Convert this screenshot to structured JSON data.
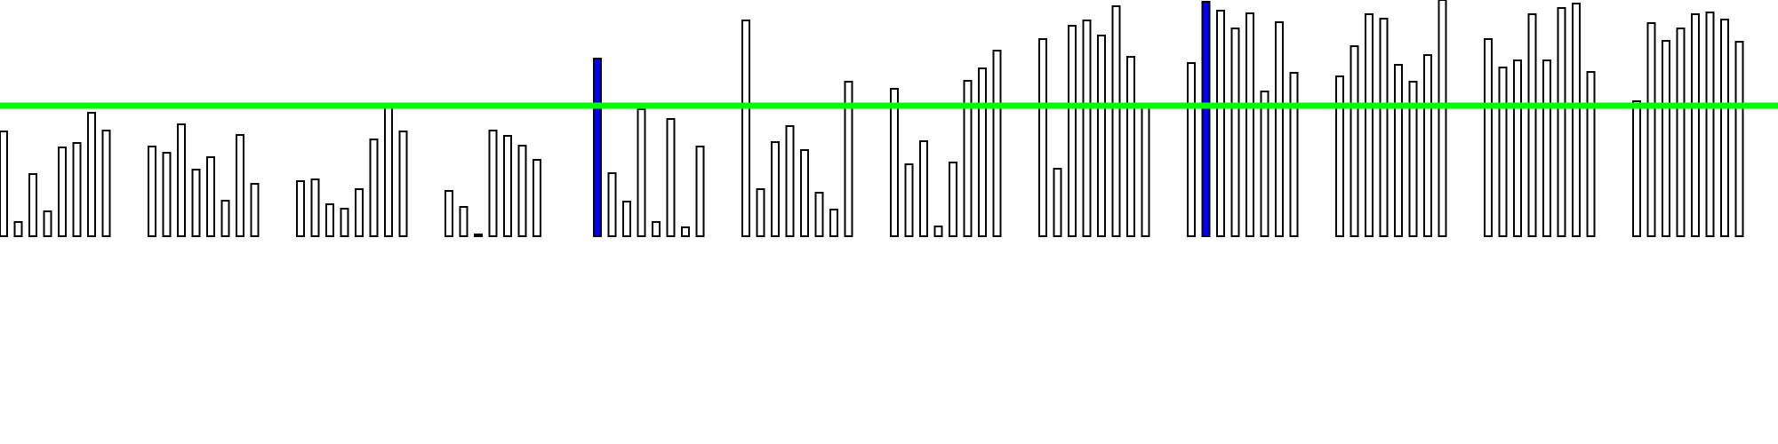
{
  "chart_data": {
    "type": "bar",
    "title": "",
    "xlabel": "",
    "ylabel": "",
    "ylim": [
      0,
      270
    ],
    "grid": false,
    "legend": "none",
    "colors": {
      "bar_fill": "#ffffff",
      "bar_stroke": "#000000",
      "highlight_fill": "#0000ff",
      "reference_line": "#00ff00",
      "background": "#ffffff"
    },
    "reference_line": {
      "value": 147
    },
    "groups": [
      {
        "values": [
          118,
          16,
          70,
          28,
          100,
          105,
          139,
          119
        ]
      },
      {
        "values": [
          101,
          94,
          126,
          75,
          89,
          40,
          114,
          59
        ]
      },
      {
        "values": [
          62,
          64,
          36,
          31,
          53,
          109,
          147,
          118
        ]
      },
      {
        "values": [
          51,
          33,
          2,
          119,
          113,
          102,
          86
        ]
      },
      {
        "values": [
          200,
          71,
          39,
          143,
          16,
          132,
          10,
          101
        ],
        "highlight_index": 0
      },
      {
        "values": [
          243,
          53,
          106,
          124,
          97,
          49,
          30,
          174
        ]
      },
      {
        "values": [
          166,
          81,
          107,
          11,
          83,
          175,
          189,
          209
        ]
      },
      {
        "values": [
          222,
          76,
          237,
          243,
          226,
          259,
          202,
          145
        ]
      },
      {
        "values": [
          195,
          264,
          254,
          234,
          251,
          163,
          241,
          184
        ],
        "highlight_index": 1
      },
      {
        "values": [
          180,
          214,
          250,
          245,
          193,
          174,
          204,
          266
        ]
      },
      {
        "values": [
          222,
          190,
          198,
          250,
          198,
          257,
          262,
          185
        ]
      },
      {
        "values": [
          152,
          240,
          220,
          234,
          250,
          252,
          244,
          219
        ]
      }
    ]
  }
}
